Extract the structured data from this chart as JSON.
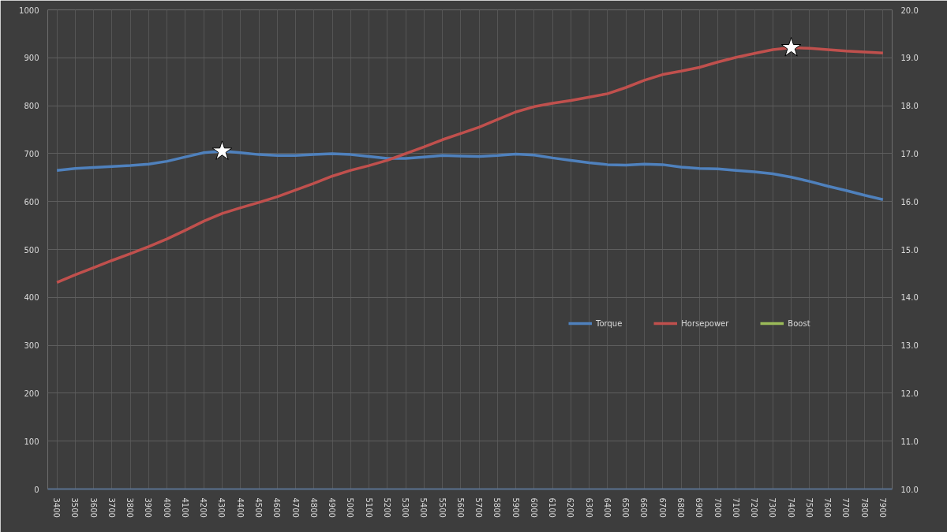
{
  "chart_data": {
    "type": "line",
    "categories": [
      "3400",
      "3500",
      "3600",
      "3700",
      "3800",
      "3900",
      "4000",
      "4100",
      "4200",
      "4300",
      "4400",
      "4500",
      "4600",
      "4700",
      "4800",
      "4900",
      "5000",
      "5100",
      "5200",
      "5300",
      "5400",
      "5500",
      "5600",
      "5700",
      "5800",
      "5900",
      "6000",
      "6100",
      "6200",
      "6300",
      "6400",
      "6500",
      "6600",
      "6700",
      "6800",
      "6900",
      "7000",
      "7100",
      "7200",
      "7300",
      "7400",
      "7500",
      "7600",
      "7700",
      "7800",
      "7900"
    ],
    "series": [
      {
        "name": "Torque",
        "color": "#4f81bd",
        "values": [
          665,
          669,
          671,
          673,
          675,
          678,
          684,
          693,
          702,
          705,
          702,
          698,
          696,
          696,
          698,
          700,
          698,
          694,
          690,
          690,
          693,
          696,
          695,
          694,
          696,
          699,
          697,
          691,
          686,
          681,
          677,
          676,
          678,
          677,
          672,
          669,
          668,
          665,
          662,
          658,
          651,
          642,
          632,
          623,
          613,
          604
        ]
      },
      {
        "name": "Horsepower",
        "color": "#c0504d",
        "values": [
          431,
          447,
          462,
          477,
          491,
          506,
          522,
          540,
          559,
          575,
          587,
          598,
          610,
          624,
          638,
          653,
          665,
          675,
          686,
          700,
          714,
          729,
          742,
          755,
          771,
          787,
          798,
          805,
          811,
          818,
          825,
          838,
          853,
          865,
          872,
          880,
          891,
          901,
          909,
          917,
          921,
          920,
          917,
          914,
          912,
          910
        ]
      },
      {
        "name": "Boost",
        "color": "#9bbb59",
        "values": [
          null,
          null,
          null,
          null,
          null,
          null,
          null,
          null,
          null,
          null,
          null,
          null,
          null,
          null,
          null,
          null,
          null,
          null,
          null,
          null,
          null,
          null,
          null,
          null,
          null,
          null,
          null,
          null,
          null,
          null,
          null,
          null,
          null,
          null,
          null,
          null,
          null,
          null,
          null,
          null,
          null,
          null,
          null,
          null,
          null,
          null
        ]
      },
      {
        "type": "scatter",
        "marker": "star",
        "color": "#ffffff",
        "values": [
          null,
          null,
          null,
          null,
          null,
          null,
          null,
          null,
          null,
          705,
          null,
          null,
          null,
          null,
          null,
          null,
          null,
          null,
          null,
          null,
          null,
          null,
          null,
          null,
          null,
          null,
          null,
          null,
          null,
          null,
          null,
          null,
          null,
          null,
          null,
          null,
          null,
          null,
          null,
          null,
          921,
          null,
          null,
          null,
          null,
          null
        ]
      }
    ],
    "ylim": [
      0,
      1000
    ],
    "yticks": [
      0,
      100,
      200,
      300,
      400,
      500,
      600,
      700,
      800,
      900,
      1000
    ],
    "y2lim": [
      10,
      20
    ],
    "y2ticks": [
      {
        "value": 10,
        "label": "10.0"
      },
      {
        "value": 11,
        "label": "11.0"
      },
      {
        "value": 12,
        "label": "12.0"
      },
      {
        "value": 13,
        "label": "13.0"
      },
      {
        "value": 14,
        "label": "14.0"
      },
      {
        "value": 15,
        "label": "15.0"
      },
      {
        "value": 16,
        "label": "16.0"
      },
      {
        "value": 17,
        "label": "17.0"
      },
      {
        "value": 18,
        "label": "18.0"
      },
      {
        "value": 19,
        "label": "19.0"
      },
      {
        "value": 20,
        "label": "20.0"
      }
    ],
    "grid": true,
    "legend": "right"
  }
}
